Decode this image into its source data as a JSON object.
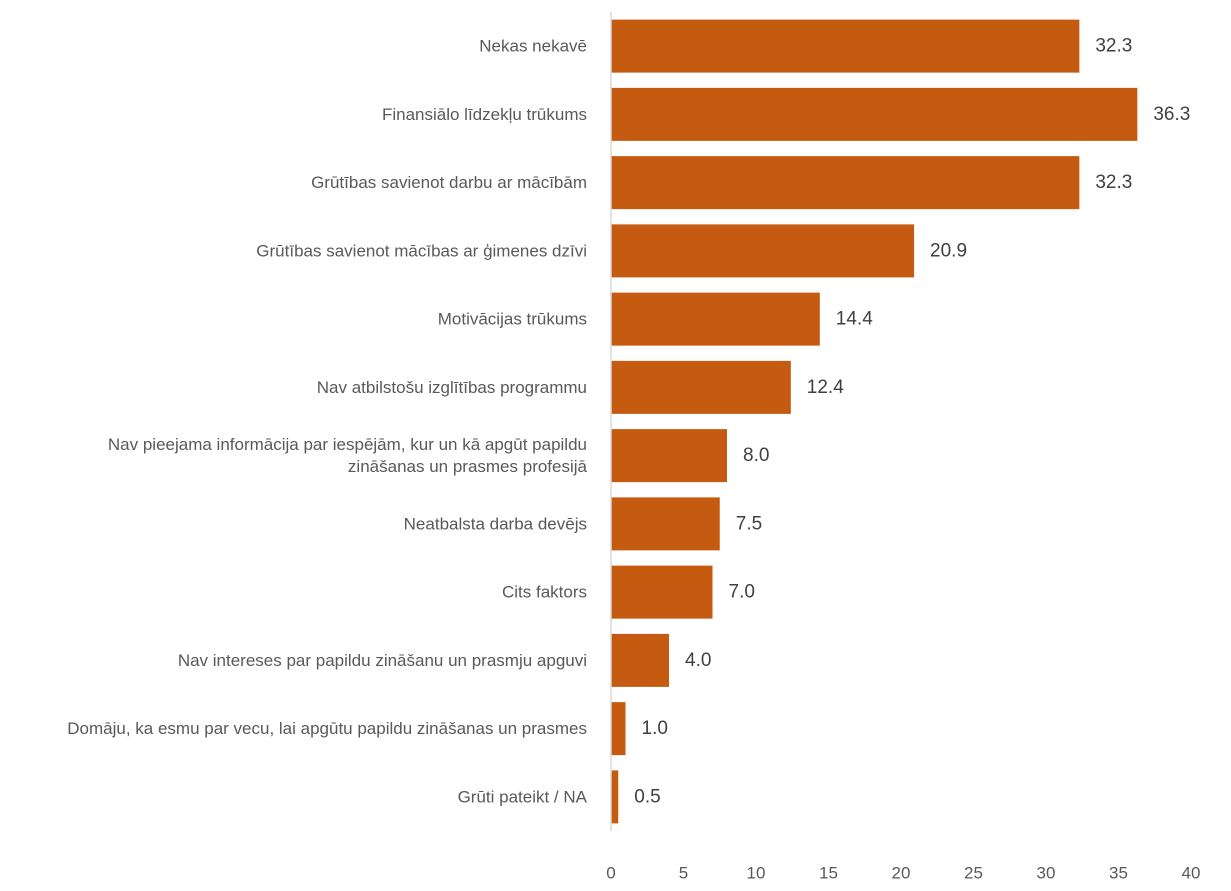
{
  "chart_data": {
    "type": "bar",
    "orientation": "horizontal",
    "categories": [
      [
        "Nekas nekavē"
      ],
      [
        "Finansiālo līdzekļu trūkums"
      ],
      [
        "Grūtības savienot darbu ar mācībām"
      ],
      [
        "Grūtības savienot mācības ar ģimenes dzīvi"
      ],
      [
        "Motivācijas trūkums"
      ],
      [
        "Nav atbilstošu izglītības programmu"
      ],
      [
        "Nav pieejama informācija par iespējām, kur un kā apgūt papildu",
        "zināšanas un prasmes profesijā"
      ],
      [
        "Neatbalsta darba devējs"
      ],
      [
        "Cits faktors"
      ],
      [
        "Nav intereses par papildu zināšanu un prasmju apguvi"
      ],
      [
        "Domāju, ka esmu par vecu, lai apgūtu papildu zināšanas un prasmes"
      ],
      [
        "Grūti pateikt / NA"
      ]
    ],
    "values": [
      32.3,
      36.3,
      32.3,
      20.9,
      14.4,
      12.4,
      8.0,
      7.5,
      7.0,
      4.0,
      1.0,
      0.5
    ],
    "value_labels": [
      "32.3",
      "36.3",
      "32.3",
      "20.9",
      "14.4",
      "12.4",
      "8.0",
      "7.5",
      "7.0",
      "4.0",
      "1.0",
      "0.5"
    ],
    "xlim": [
      0,
      40
    ],
    "xticks": [
      0,
      5,
      10,
      15,
      20,
      25,
      30,
      35,
      40
    ],
    "grid": false,
    "legend": "none",
    "colors": {
      "bar": "#C55A11",
      "axis": "#D9D9D9"
    }
  }
}
